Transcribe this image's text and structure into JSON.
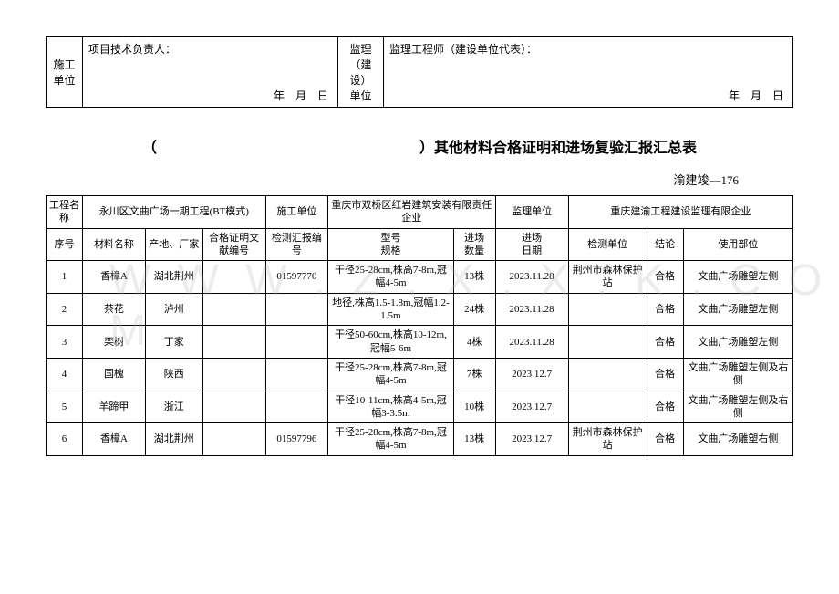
{
  "top": {
    "col1": "施工\n单位",
    "col2_label": "项目技术负责人：",
    "col2_date": "年　月　日",
    "col3": "监理\n（建设）\n单位",
    "col4_label": "监理工程师（建设单位代表）：",
    "col4_date": "年　月　日"
  },
  "title": {
    "open": "（",
    "close": "）其他材料合格证明和进场复验汇报汇总表"
  },
  "doc_code": "渝建竣—176",
  "info": {
    "project_label": "工程名称",
    "project_value": "永川区文曲广场一期工程(BT模式)",
    "constructor_label": "施工单位",
    "constructor_value": "重庆市双桥区红岩建筑安装有限责任企业",
    "supervisor_label": "监理单位",
    "supervisor_value": "重庆建渝工程建设监理有限企业"
  },
  "headers": [
    "序号",
    "材料名称",
    "产地、厂家",
    "合格证明文献编号",
    "检测汇报编号",
    "型号\n规格",
    "进场\n数量",
    "进场\n日期",
    "检测单位",
    "结论",
    "使用部位"
  ],
  "rows": [
    [
      "1",
      "香樟A",
      "湖北荆州",
      "",
      "01597770",
      "干径25-28cm,株高7-8m,冠幅4-5m",
      "13株",
      "2023.11.28",
      "荆州市森林保护站",
      "合格",
      "文曲广场雕塑左侧"
    ],
    [
      "2",
      "茶花",
      "泸州",
      "",
      "",
      "地径,株高1.5-1.8m,冠幅1.2-1.5m",
      "24株",
      "2023.11.28",
      "",
      "合格",
      "文曲广场雕塑左侧"
    ],
    [
      "3",
      "栾树",
      "丁家",
      "",
      "",
      "干径50-60cm,株高10-12m,冠幅5-6m",
      "4株",
      "2023.11.28",
      "",
      "合格",
      "文曲广场雕塑左侧"
    ],
    [
      "4",
      "国槐",
      "陕西",
      "",
      "",
      "干径25-28cm,株高7-8m,冠幅4-5m",
      "7株",
      "2023.12.7",
      "",
      "合格",
      "文曲广场雕塑左侧及右侧"
    ],
    [
      "5",
      "羊蹄甲",
      "浙江",
      "",
      "",
      "干径10-11cm,株高4-5m,冠幅3-3.5m",
      "10株",
      "2023.12.7",
      "",
      "合格",
      "文曲广场雕塑左侧及右侧"
    ],
    [
      "6",
      "香樟A",
      "湖北荆州",
      "",
      "01597796",
      "干径25-28cm,株高7-8m,冠幅4-5m",
      "13株",
      "2023.12.7",
      "荆州市森林保护站",
      "合格",
      "文曲广场雕塑右侧"
    ]
  ],
  "watermark": "W W W . Z . X . X . K . C O M",
  "col_widths": [
    "35px",
    "60px",
    "55px",
    "60px",
    "60px",
    "120px",
    "40px",
    "70px",
    "75px",
    "35px",
    "105px"
  ]
}
